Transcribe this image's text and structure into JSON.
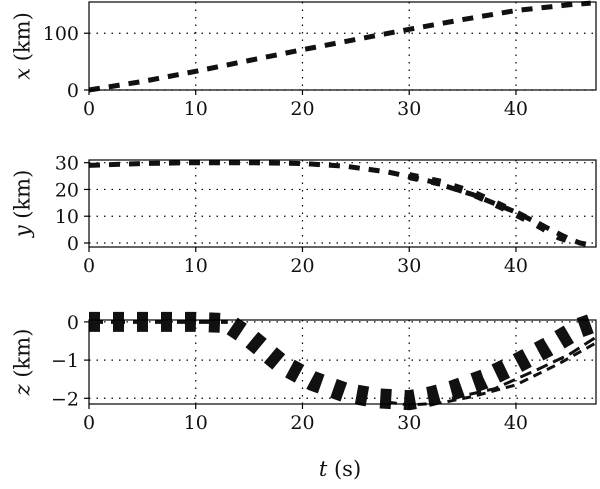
{
  "chart_data": [
    {
      "type": "line",
      "ylabel_var": "x",
      "ylabel_unit": " (km)",
      "xlim": [
        0,
        47.5
      ],
      "ylim": [
        0,
        155
      ],
      "xticks": [
        0,
        10,
        20,
        30,
        40
      ],
      "yticks": [
        0,
        100
      ],
      "grid": true,
      "series": [
        {
          "x": [
            0,
            5,
            10,
            15,
            20,
            25,
            30,
            35,
            40,
            45,
            47
          ],
          "y": [
            0,
            15,
            33,
            52,
            71,
            89,
            107,
            124,
            140,
            150,
            153
          ],
          "width": 5,
          "dash": "11 9"
        }
      ]
    },
    {
      "type": "line",
      "ylabel_var": "y",
      "ylabel_unit": " (km)",
      "xlim": [
        0,
        47.5
      ],
      "ylim": [
        -1.5,
        31
      ],
      "xticks": [
        0,
        10,
        20,
        30,
        40
      ],
      "yticks": [
        0,
        10,
        20,
        30
      ],
      "grid": true,
      "series": [
        {
          "x": [
            0,
            5,
            10,
            15,
            20,
            24,
            28,
            32,
            36,
            40,
            43,
            45,
            46,
            47
          ],
          "y": [
            29,
            29.7,
            30,
            30,
            29.7,
            28.7,
            26.5,
            23,
            18,
            11.5,
            5.5,
            1.5,
            0,
            -0.8
          ],
          "width": 5,
          "dash": "11 9"
        },
        {
          "x": [
            30,
            33,
            36,
            39,
            42,
            44,
            45.5
          ],
          "y": [
            25,
            22.5,
            18.5,
            13,
            7,
            2.5,
            0.5
          ],
          "width": 8,
          "dash": "9 14"
        }
      ]
    },
    {
      "type": "line",
      "ylabel_var": "z",
      "ylabel_unit": " (km)",
      "xlim": [
        0,
        47.5
      ],
      "ylim": [
        -2.15,
        0.05
      ],
      "xticks": [
        0,
        10,
        20,
        30,
        40
      ],
      "yticks": [
        0,
        -1,
        -2
      ],
      "grid": true,
      "series": [
        {
          "x": [
            0,
            5,
            10,
            13,
            15,
            18,
            21,
            24,
            27,
            30,
            32,
            34,
            37,
            40,
            43,
            46,
            47.5
          ],
          "y": [
            0,
            0,
            0,
            -0.03,
            -0.4,
            -1.1,
            -1.55,
            -1.85,
            -2.0,
            -2.05,
            -1.95,
            -1.8,
            -1.5,
            -1.1,
            -0.65,
            -0.15,
            0
          ],
          "width": 20,
          "dash": "11 13"
        },
        {
          "x": [
            0,
            10,
            13
          ],
          "y": [
            0,
            0,
            0
          ],
          "width": 4,
          "dash": "14 8"
        },
        {
          "x": [
            28,
            30,
            33,
            36,
            40,
            44,
            47.5
          ],
          "y": [
            -2.1,
            -2.18,
            -2.12,
            -1.95,
            -1.65,
            -1.1,
            -0.55
          ],
          "width": 3,
          "dash": "9 6"
        },
        {
          "x": [
            34,
            38,
            42,
            45,
            47.5
          ],
          "y": [
            -2.0,
            -1.75,
            -1.25,
            -0.85,
            -0.4
          ],
          "width": 3,
          "dash": "12 6"
        }
      ]
    }
  ],
  "shared_xlabel_var": "t",
  "shared_xlabel_unit": " (s)"
}
